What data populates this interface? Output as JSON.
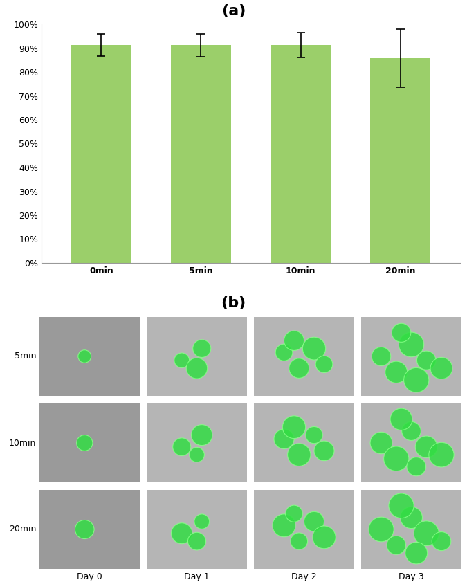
{
  "chart_data": {
    "type": "bar",
    "title": "(a)",
    "categories": [
      "0min",
      "5min",
      "10min",
      "20min"
    ],
    "values": [
      91.3,
      91.2,
      91.4,
      85.8
    ],
    "errors": [
      4.6,
      4.7,
      5.2,
      12.1
    ],
    "color": "#9bcf6a",
    "ylim": [
      0,
      100
    ],
    "yticks": [
      {
        "value": 0,
        "label": "0%"
      },
      {
        "value": 10,
        "label": "10%"
      },
      {
        "value": 20,
        "label": "20%"
      },
      {
        "value": 30,
        "label": "30%"
      },
      {
        "value": 40,
        "label": "40%"
      },
      {
        "value": 50,
        "label": "50%"
      },
      {
        "value": 60,
        "label": "60%"
      },
      {
        "value": 70,
        "label": "70%"
      },
      {
        "value": 80,
        "label": "80%"
      },
      {
        "value": 90,
        "label": "90%"
      },
      {
        "value": 100,
        "label": "100%"
      }
    ],
    "grid": false
  },
  "image_grid": {
    "title": "(b)",
    "rows": [
      "5min",
      "10min",
      "20min"
    ],
    "columns": [
      "Day 0",
      "Day 1",
      "Day 2",
      "Day 3"
    ]
  }
}
